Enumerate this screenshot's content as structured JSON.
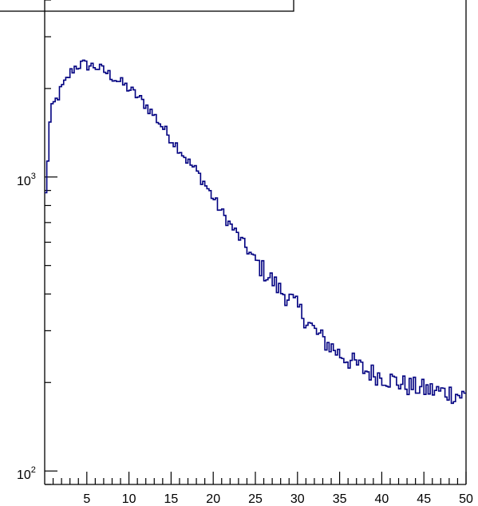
{
  "chart_data": {
    "type": "step-histogram",
    "title": "",
    "xlabel": "",
    "ylabel": "",
    "x_range": [
      0,
      50
    ],
    "y_range": [
      90,
      4000
    ],
    "y_scale": "log",
    "grid": false,
    "legend": "none",
    "line_color": "#000080",
    "bin_width": 0.25,
    "x_ticks": [
      {
        "value": 5,
        "label": "5"
      },
      {
        "value": 10,
        "label": "10"
      },
      {
        "value": 15,
        "label": "15"
      },
      {
        "value": 20,
        "label": "20"
      },
      {
        "value": 25,
        "label": "25"
      },
      {
        "value": 30,
        "label": "30"
      },
      {
        "value": 35,
        "label": "35"
      },
      {
        "value": 40,
        "label": "40"
      },
      {
        "value": 45,
        "label": "45"
      },
      {
        "value": 50,
        "label": "50"
      }
    ],
    "y_ticks": [
      {
        "value": 100,
        "base": "10",
        "exp": "2"
      },
      {
        "value": 1000,
        "base": "10",
        "exp": "3"
      }
    ],
    "control_points": [
      [
        0.0,
        800
      ],
      [
        0.25,
        950
      ],
      [
        0.5,
        1400
      ],
      [
        0.75,
        1650
      ],
      [
        1.0,
        1750
      ],
      [
        1.5,
        1850
      ],
      [
        2.0,
        2000
      ],
      [
        2.5,
        2100
      ],
      [
        3.0,
        2250
      ],
      [
        3.5,
        2350
      ],
      [
        4.0,
        2400
      ],
      [
        4.5,
        2420
      ],
      [
        5.0,
        2400
      ],
      [
        6.0,
        2380
      ],
      [
        7.0,
        2300
      ],
      [
        8.0,
        2200
      ],
      [
        9.0,
        2100
      ],
      [
        10.0,
        2000
      ],
      [
        11.0,
        1880
      ],
      [
        12.0,
        1760
      ],
      [
        13.0,
        1620
      ],
      [
        14.0,
        1480
      ],
      [
        15.0,
        1350
      ],
      [
        16.0,
        1250
      ],
      [
        17.0,
        1130
      ],
      [
        18.0,
        1050
      ],
      [
        19.0,
        950
      ],
      [
        20.0,
        850
      ],
      [
        21.0,
        760
      ],
      [
        22.0,
        690
      ],
      [
        23.0,
        630
      ],
      [
        24.0,
        570
      ],
      [
        25.0,
        520
      ],
      [
        26.0,
        480
      ],
      [
        27.0,
        445
      ],
      [
        28.0,
        410
      ],
      [
        29.0,
        390
      ],
      [
        30.0,
        360
      ],
      [
        31.0,
        330
      ],
      [
        32.0,
        300
      ],
      [
        33.0,
        280
      ],
      [
        34.0,
        265
      ],
      [
        35.0,
        250
      ],
      [
        36.0,
        240
      ],
      [
        37.0,
        230
      ],
      [
        38.0,
        220
      ],
      [
        39.0,
        215
      ],
      [
        40.0,
        210
      ],
      [
        41.0,
        205
      ],
      [
        42.0,
        200
      ],
      [
        43.0,
        195
      ],
      [
        44.0,
        193
      ],
      [
        45.0,
        190
      ],
      [
        46.0,
        188
      ],
      [
        47.0,
        186
      ],
      [
        48.0,
        185
      ],
      [
        49.0,
        182
      ],
      [
        50.0,
        180
      ]
    ],
    "noise_amplitude": 0.045,
    "noise_seed": 12345
  }
}
